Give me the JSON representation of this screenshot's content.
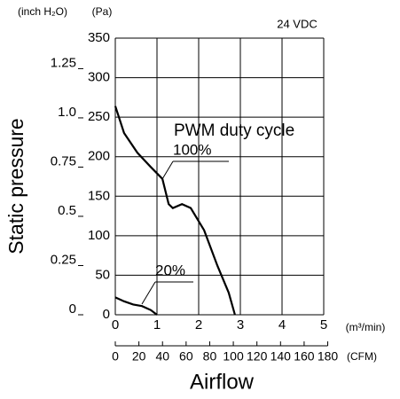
{
  "chart_data": {
    "type": "line",
    "title": "24 VDC",
    "annotation": "PWM duty cycle",
    "y_axis_label": "Static pressure",
    "x_axis_label": "Airflow",
    "y_unit": "(Pa)",
    "y2_unit": "(inch H₂O)",
    "x_unit": "(m³/min)",
    "x2_unit": "(CFM)",
    "xlim": [
      0,
      5
    ],
    "xticks": [
      0,
      1,
      2,
      3,
      4,
      5
    ],
    "x2lim": [
      0,
      176.6
    ],
    "x2ticks": [
      0,
      20,
      40,
      60,
      80,
      100,
      120,
      140,
      160,
      180
    ],
    "ylim": [
      0,
      350
    ],
    "yticks": [
      0,
      50,
      100,
      150,
      200,
      250,
      300,
      350
    ],
    "y2lim": [
      0,
      1.405
    ],
    "y2ticks": [
      0,
      0.25,
      0.5,
      0.75,
      {
        "value": 1.0,
        "label": "1.0"
      },
      1.25
    ],
    "grid": true,
    "series": [
      {
        "name": "100%",
        "color": "#000000",
        "x": [
          0,
          0.21,
          0.53,
          0.85,
          1.13,
          1.28,
          1.38,
          1.6,
          1.81,
          2.13,
          2.45,
          2.72,
          2.87
        ],
        "values": [
          264,
          230,
          205,
          187,
          172,
          140,
          135,
          140,
          135,
          107,
          62,
          28,
          0
        ]
      },
      {
        "name": "20%",
        "color": "#000000",
        "x": [
          0,
          0.21,
          0.43,
          0.64,
          0.85,
          1.0
        ],
        "values": [
          22,
          17,
          13,
          11,
          6,
          0
        ]
      }
    ]
  }
}
